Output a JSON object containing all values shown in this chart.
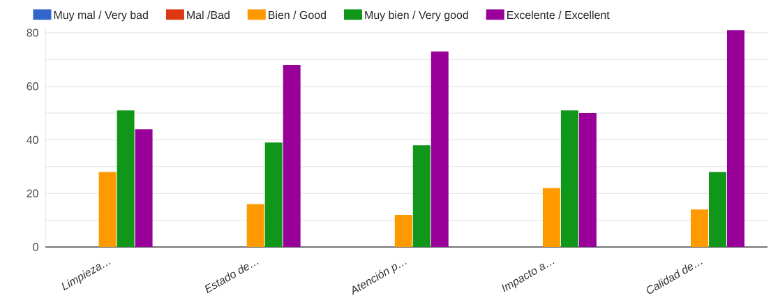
{
  "chart_data": {
    "type": "bar",
    "categories": [
      "Limpieza…",
      "Estado de…",
      "Atención p…",
      "Impacto a…",
      "Calidad de…"
    ],
    "series": [
      {
        "name": "Muy mal / Very bad",
        "color": "#3366cc",
        "values": [
          0,
          0,
          0,
          0,
          0
        ]
      },
      {
        "name": "Mal /Bad",
        "color": "#dc3912",
        "values": [
          0,
          0,
          0,
          0,
          0
        ]
      },
      {
        "name": "Bien / Good",
        "color": "#ff9900",
        "values": [
          28,
          16,
          12,
          22,
          14
        ]
      },
      {
        "name": "Muy bien / Very good",
        "color": "#109618",
        "values": [
          51,
          39,
          38,
          51,
          28
        ]
      },
      {
        "name": "Excelente / Excellent",
        "color": "#990099",
        "values": [
          44,
          68,
          73,
          50,
          81
        ]
      }
    ],
    "ylim": [
      0,
      82
    ],
    "yticks": [
      0,
      {
        "value": 10,
        "label": null
      },
      20,
      {
        "value": 30,
        "label": null
      },
      40,
      {
        "value": 50,
        "label": null
      },
      60,
      {
        "value": 70,
        "label": null
      },
      80
    ],
    "grid": "y",
    "legend": "top"
  }
}
